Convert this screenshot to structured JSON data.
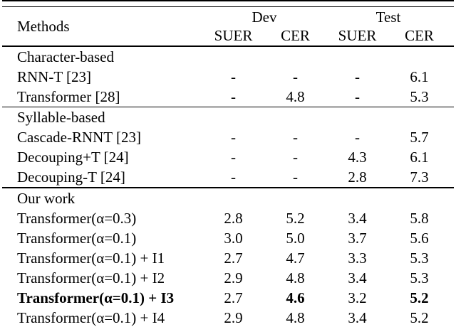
{
  "table": {
    "header": {
      "methods_label": "Methods",
      "groups": [
        {
          "label": "Dev"
        },
        {
          "label": "Test"
        }
      ],
      "subcolumns": [
        "SUER",
        "CER",
        "SUER",
        "CER"
      ]
    },
    "sections": [
      {
        "title": "Character-based",
        "rows": [
          {
            "method": "RNN-T [23]",
            "values": [
              "-",
              "-",
              "-",
              "6.1"
            ]
          },
          {
            "method": "Transformer [28]",
            "values": [
              "-",
              "4.8",
              "-",
              "5.3"
            ]
          }
        ]
      },
      {
        "title": "Syllable-based",
        "rows": [
          {
            "method": "Cascade-RNNT [23]",
            "values": [
              "-",
              "-",
              "-",
              "5.7"
            ]
          },
          {
            "method": "Decouping+T [24]",
            "values": [
              "-",
              "-",
              "4.3",
              "6.1"
            ]
          },
          {
            "method": "Decouping-T [24]",
            "values": [
              "-",
              "-",
              "2.8",
              "7.3"
            ]
          }
        ]
      },
      {
        "title": "Our work",
        "rows": [
          {
            "method": "Transformer(α=0.3)",
            "values": [
              "2.8",
              "5.2",
              "3.4",
              "5.8"
            ]
          },
          {
            "method": "Transformer(α=0.1)",
            "values": [
              "3.0",
              "5.0",
              "3.7",
              "5.6"
            ]
          },
          {
            "method": "Transformer(α=0.1) + I1",
            "values": [
              "2.7",
              "4.7",
              "3.3",
              "5.3"
            ]
          },
          {
            "method": "Transformer(α=0.1) + I2",
            "values": [
              "2.9",
              "4.8",
              "3.4",
              "5.3"
            ]
          },
          {
            "method": "Transformer(α=0.1) + I3",
            "values": [
              "2.7",
              "4.6",
              "3.2",
              "5.2"
            ],
            "bold_method": true,
            "bold_values": [
              false,
              true,
              false,
              true
            ]
          },
          {
            "method": "Transformer(α=0.1) + I4",
            "values": [
              "2.9",
              "4.8",
              "3.4",
              "5.2"
            ]
          }
        ]
      }
    ],
    "colors": {
      "text": "#000000",
      "background": "#ffffff",
      "rule": "#000000"
    }
  }
}
